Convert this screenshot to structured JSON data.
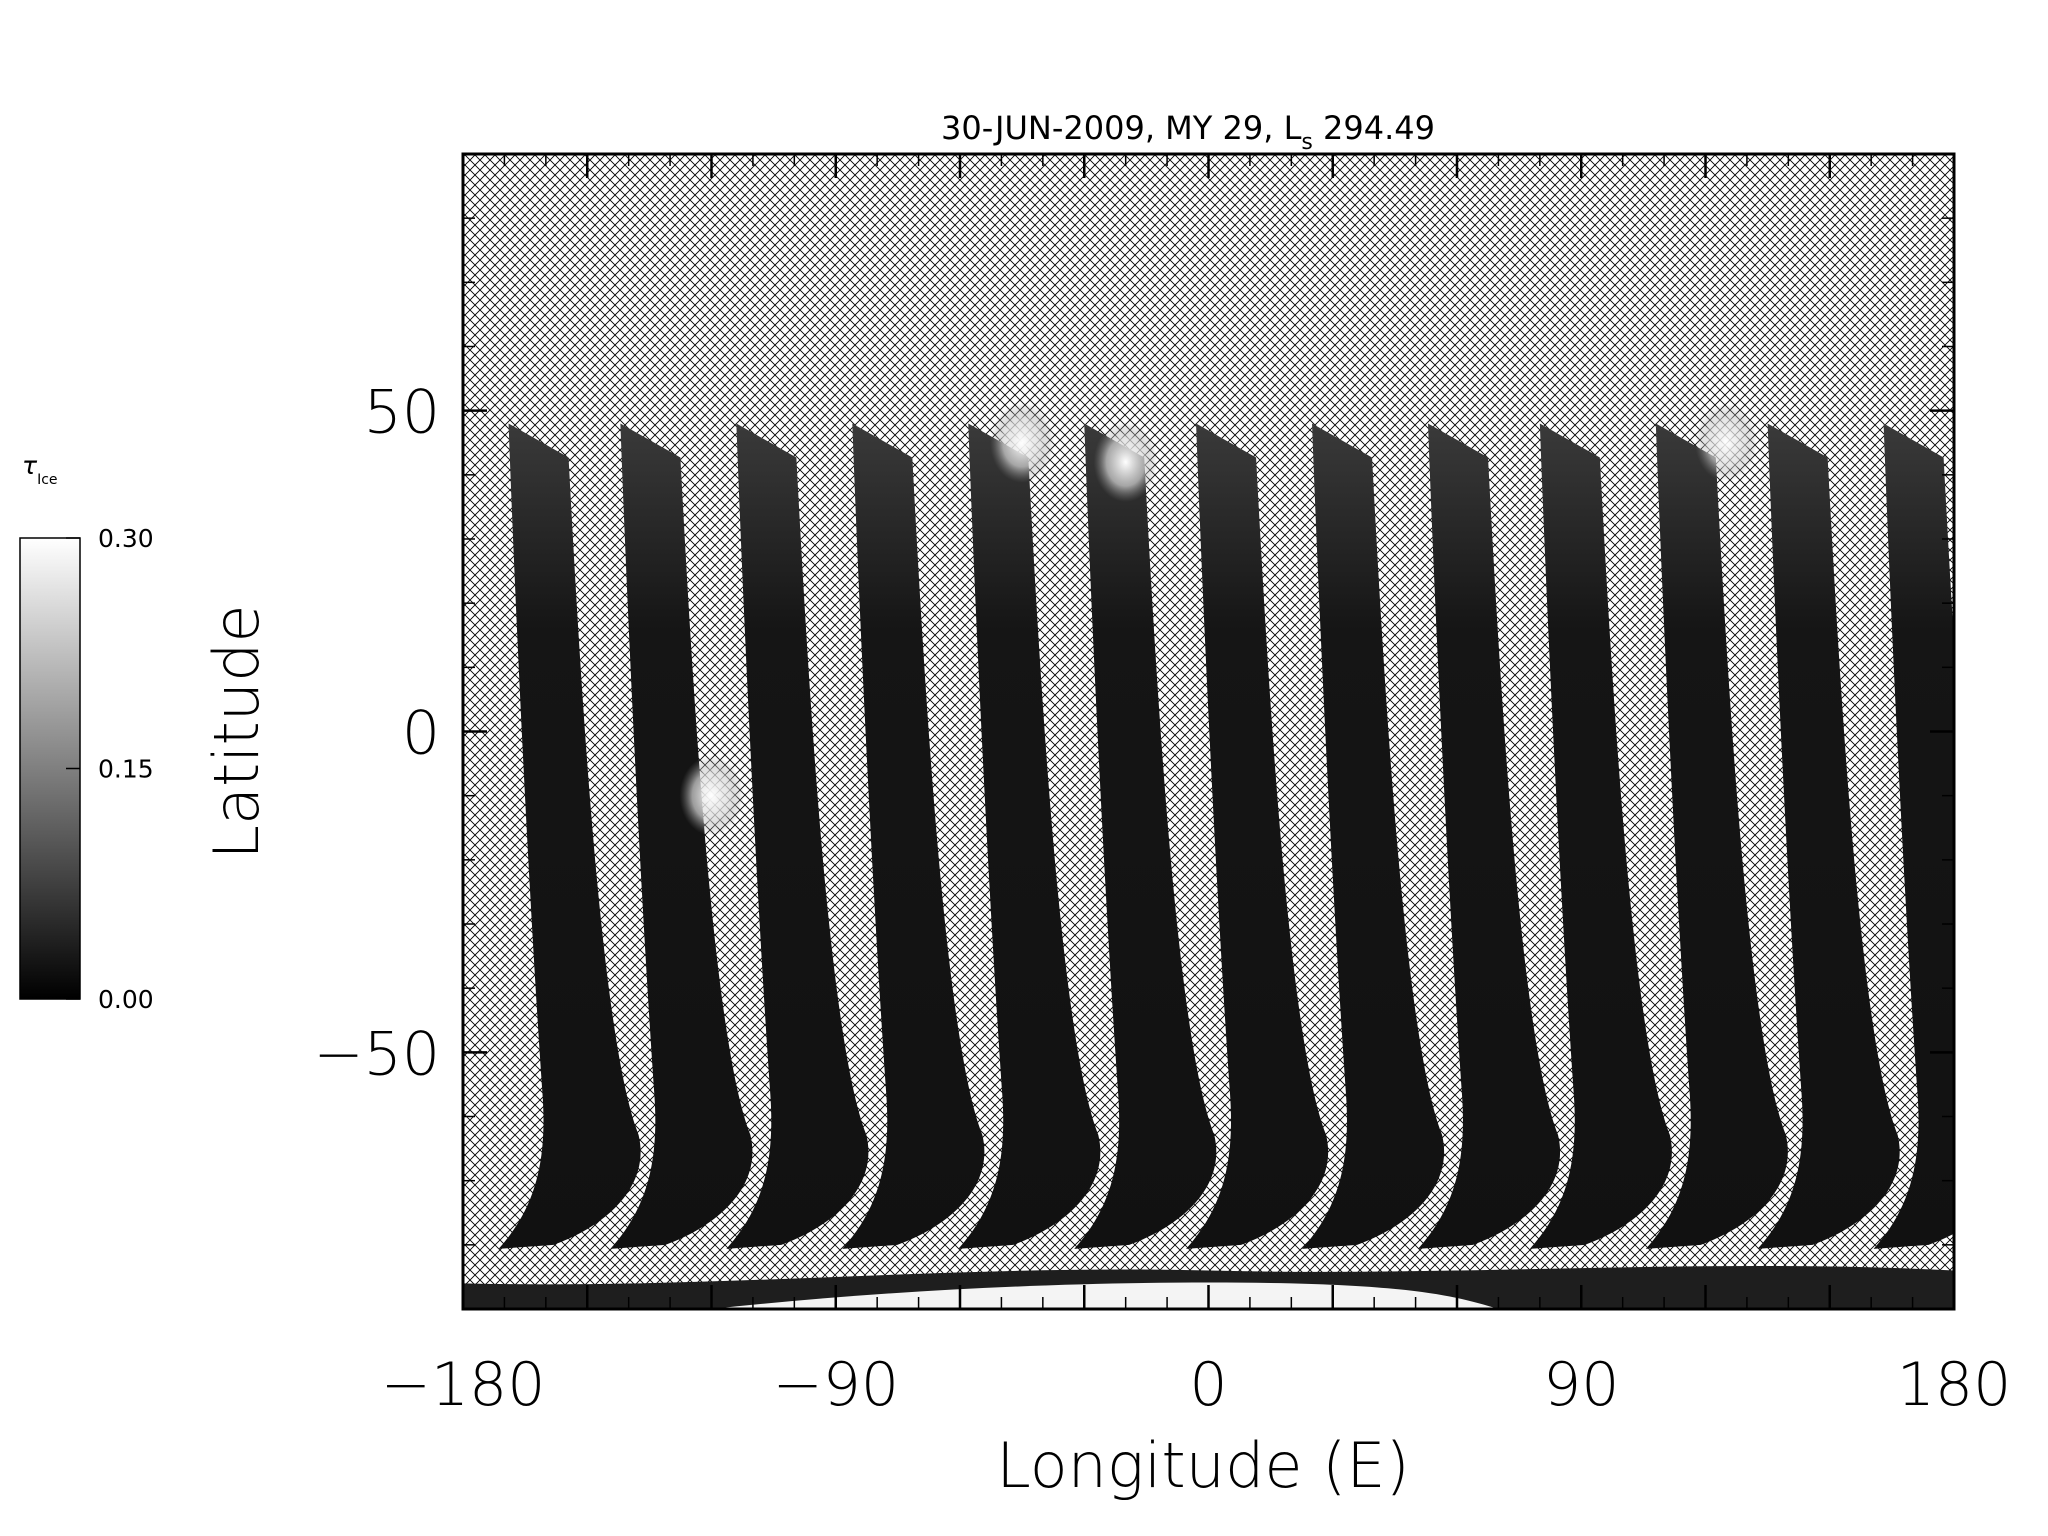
{
  "chart_data": {
    "type": "heatmap",
    "title": "30-JUN-2009, MY 29,  L",
    "title_sub": "s",
    "title_suffix": " 294.49",
    "xlabel": "Longitude (E)",
    "ylabel": "Latitude",
    "xlim": [
      -180,
      180
    ],
    "ylim": [
      -90,
      90
    ],
    "xticks": [
      -180,
      -90,
      0,
      90,
      180
    ],
    "xtick_labels": [
      "−180",
      "−90",
      "0",
      "90",
      "180"
    ],
    "yticks": [
      -50,
      0,
      50
    ],
    "ytick_labels": [
      "−50",
      "0",
      "50"
    ],
    "colorbar": {
      "label": "τ",
      "label_sub": "Ice",
      "min": 0.0,
      "max": 0.3,
      "ticks": [
        0.0,
        0.15,
        0.3
      ],
      "tick_labels": [
        "0.00",
        "0.15",
        "0.30"
      ],
      "colormap": "grayscale"
    },
    "swath_longitudes_top": [
      -169,
      -142,
      -114,
      -86,
      -58,
      -30,
      -3,
      25,
      53,
      80,
      108,
      135,
      163
    ],
    "swath_top_latitude": 48,
    "swath_bottom_latitude": -80,
    "missing_data_pattern": "crosshatch",
    "features": [
      {
        "lon": -120,
        "lat": -10,
        "value": 0.3
      },
      {
        "lon": -45,
        "lat": 45,
        "value": 0.3
      },
      {
        "lon": -20,
        "lat": 42,
        "value": 0.3
      },
      {
        "lon": 125,
        "lat": 45,
        "value": 0.27
      },
      {
        "lon": 0,
        "lat": -88,
        "value": 0.3
      }
    ]
  }
}
